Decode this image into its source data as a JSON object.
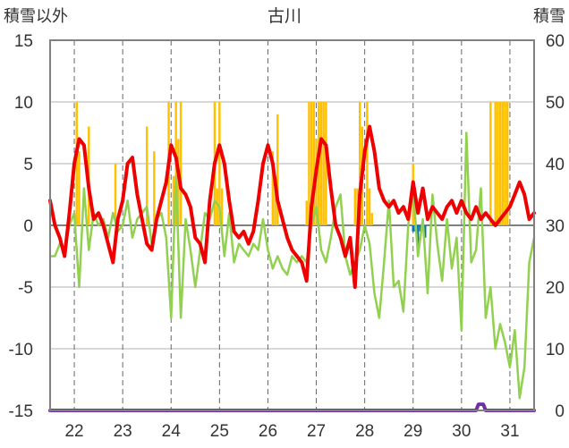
{
  "chart_data": {
    "type": "line",
    "title": "古川",
    "ylabel_left": "積雪以外",
    "ylabel_right": "積雪",
    "ylim_left": [
      -15,
      15
    ],
    "ylim_right": [
      0,
      60
    ],
    "yticks_left": [
      "15",
      "10",
      "5",
      "0",
      "-5",
      "-10",
      "-15"
    ],
    "yticks_right": [
      "60",
      "50",
      "40",
      "30",
      "20",
      "10",
      "0"
    ],
    "x_range": [
      21.5,
      31.5
    ],
    "categories": [
      "22",
      "23",
      "24",
      "25",
      "26",
      "27",
      "28",
      "29",
      "30",
      "31"
    ],
    "grid": "dashed vertical at each day, solid horizontal",
    "series": [
      {
        "role": "temperature",
        "color": "#ee0000",
        "axis": "left",
        "x": [
          21.5,
          21.6,
          21.7,
          21.8,
          21.9,
          22.0,
          22.1,
          22.2,
          22.3,
          22.4,
          22.5,
          22.6,
          22.7,
          22.8,
          22.9,
          23.0,
          23.1,
          23.2,
          23.3,
          23.4,
          23.5,
          23.6,
          23.7,
          23.8,
          23.9,
          24.0,
          24.1,
          24.2,
          24.3,
          24.4,
          24.5,
          24.6,
          24.7,
          24.8,
          24.9,
          25.0,
          25.1,
          25.2,
          25.3,
          25.4,
          25.5,
          25.6,
          25.7,
          25.8,
          25.9,
          26.0,
          26.1,
          26.2,
          26.3,
          26.4,
          26.5,
          26.6,
          26.7,
          26.8,
          26.9,
          27.0,
          27.1,
          27.2,
          27.3,
          27.4,
          27.5,
          27.6,
          27.7,
          27.8,
          27.9,
          28.0,
          28.1,
          28.2,
          28.3,
          28.4,
          28.5,
          28.6,
          28.7,
          28.8,
          28.9,
          29.0,
          29.1,
          29.2,
          29.3,
          29.4,
          29.5,
          29.6,
          29.7,
          29.8,
          29.9,
          30.0,
          30.1,
          30.2,
          30.3,
          30.4,
          30.5,
          30.6,
          30.7,
          30.8,
          30.9,
          31.0,
          31.1,
          31.2,
          31.3,
          31.4,
          31.5
        ],
        "y": [
          2.0,
          0.0,
          -1.0,
          -2.5,
          1.0,
          5.0,
          7.0,
          6.5,
          3.0,
          0.5,
          1.0,
          0.0,
          -1.5,
          -3.0,
          0.5,
          2.0,
          5.0,
          5.5,
          2.5,
          0.5,
          -1.5,
          -2.0,
          0.5,
          2.0,
          3.5,
          6.5,
          5.5,
          3.0,
          2.5,
          1.5,
          -1.0,
          -1.5,
          -3.0,
          2.0,
          5.0,
          6.5,
          5.0,
          2.0,
          -0.5,
          -1.0,
          -0.5,
          -1.5,
          -0.5,
          2.0,
          5.0,
          6.5,
          5.0,
          2.0,
          0.5,
          -1.0,
          -2.0,
          -2.5,
          -3.0,
          -4.5,
          1.5,
          4.5,
          7.0,
          6.5,
          3.0,
          0.0,
          -1.0,
          -2.5,
          -1.0,
          -5.0,
          2.5,
          6.0,
          8.0,
          6.0,
          3.0,
          2.0,
          1.5,
          2.0,
          1.0,
          1.5,
          0.5,
          3.5,
          1.0,
          3.0,
          0.5,
          1.5,
          1.0,
          0.5,
          1.5,
          2.0,
          1.0,
          2.0,
          1.0,
          0.5,
          1.5,
          0.5,
          1.0,
          0.5,
          0.0,
          0.5,
          1.0,
          1.5,
          2.5,
          3.5,
          2.5,
          0.5,
          1.0
        ]
      },
      {
        "role": "wind",
        "color": "#92d050",
        "axis": "left",
        "x": [
          21.5,
          21.6,
          21.7,
          21.8,
          21.9,
          22.0,
          22.1,
          22.2,
          22.3,
          22.4,
          22.5,
          22.6,
          22.7,
          22.8,
          22.9,
          23.0,
          23.1,
          23.2,
          23.3,
          23.4,
          23.5,
          23.6,
          23.7,
          23.8,
          23.9,
          24.0,
          24.1,
          24.2,
          24.3,
          24.4,
          24.5,
          24.6,
          24.7,
          24.8,
          24.9,
          25.0,
          25.1,
          25.2,
          25.3,
          25.4,
          25.5,
          25.6,
          25.7,
          25.8,
          25.9,
          26.0,
          26.1,
          26.2,
          26.3,
          26.4,
          26.5,
          26.6,
          26.7,
          26.8,
          26.9,
          27.0,
          27.1,
          27.2,
          27.3,
          27.4,
          27.5,
          27.6,
          27.7,
          27.8,
          27.9,
          28.0,
          28.1,
          28.2,
          28.3,
          28.4,
          28.5,
          28.6,
          28.7,
          28.8,
          28.9,
          29.0,
          29.1,
          29.2,
          29.3,
          29.4,
          29.5,
          29.6,
          29.7,
          29.8,
          29.9,
          30.0,
          30.1,
          30.2,
          30.3,
          30.4,
          30.5,
          30.6,
          30.7,
          30.8,
          30.9,
          31.0,
          31.1,
          31.2,
          31.3,
          31.4,
          31.5
        ],
        "y": [
          -2.5,
          -2.5,
          -1.5,
          -2.0,
          0.0,
          1.0,
          -5.0,
          3.0,
          -2.0,
          1.0,
          0.0,
          0.5,
          -1.0,
          1.0,
          -0.5,
          0.0,
          2.0,
          -1.0,
          0.5,
          1.0,
          1.5,
          -1.5,
          0.5,
          1.0,
          -1.0,
          -7.5,
          4.0,
          -7.5,
          0.5,
          -2.0,
          -5.0,
          -2.0,
          1.0,
          0.5,
          2.0,
          1.5,
          -2.5,
          1.0,
          -3.0,
          -1.5,
          -2.0,
          -2.5,
          -1.5,
          -2.0,
          0.5,
          -2.0,
          -3.5,
          -2.5,
          -3.5,
          -4.0,
          -2.5,
          -3.0,
          -2.5,
          -3.0,
          0.0,
          1.5,
          -2.0,
          -3.0,
          -1.0,
          1.5,
          2.5,
          -2.5,
          -4.0,
          -3.0,
          -2.0,
          0.0,
          -1.5,
          -5.5,
          -7.5,
          -3.0,
          2.0,
          -5.0,
          -4.5,
          -7.0,
          0.0,
          3.0,
          -2.5,
          0.5,
          -5.5,
          2.5,
          -1.5,
          -4.5,
          0.5,
          -3.5,
          -1.0,
          -8.5,
          7.5,
          -3.0,
          -2.0,
          3.0,
          -7.5,
          -5.0,
          -10.0,
          -8.0,
          -9.5,
          -11.5,
          -8.5,
          -14.0,
          -11.5,
          -3.0,
          -1.0
        ]
      },
      {
        "role": "precipitation",
        "color": "#ffc000",
        "axis": "left",
        "type": "bar",
        "x": [
          22.05,
          22.1,
          22.3,
          22.85,
          23.5,
          23.65,
          23.95,
          24.05,
          24.1,
          24.15,
          24.2,
          24.9,
          24.95,
          25.0,
          25.05,
          26.1,
          26.15,
          26.2,
          26.8,
          26.85,
          26.9,
          26.95,
          27.0,
          27.05,
          27.1,
          27.15,
          27.2,
          27.8,
          27.85,
          27.9,
          27.95,
          28.05,
          28.1,
          28.15,
          29.0,
          30.6,
          30.7,
          30.75,
          30.8,
          30.85,
          30.9,
          30.95
        ],
        "y": [
          10,
          6,
          8,
          5,
          8,
          6,
          10,
          4,
          10,
          7,
          10,
          10,
          3,
          10,
          3,
          6,
          3,
          9,
          2,
          10,
          10,
          10,
          7,
          10,
          10,
          10,
          10,
          3,
          3,
          10,
          8,
          10,
          3,
          1,
          5,
          10,
          10,
          10,
          10,
          10,
          10,
          10
        ]
      },
      {
        "role": "snowmelt",
        "color": "#0070c0",
        "axis": "left",
        "type": "bar",
        "x": [
          29.0,
          29.05,
          29.1,
          29.15,
          29.25
        ],
        "y": [
          -0.5,
          -0.5,
          -2.5,
          -0.5,
          -1.0
        ]
      },
      {
        "role": "snow_depth",
        "color": "#7030a0",
        "axis": "right",
        "x": [
          21.5,
          30.3,
          30.35,
          30.45,
          30.5,
          31.5
        ],
        "y": [
          0,
          0,
          1,
          1,
          0,
          0
        ]
      }
    ]
  }
}
